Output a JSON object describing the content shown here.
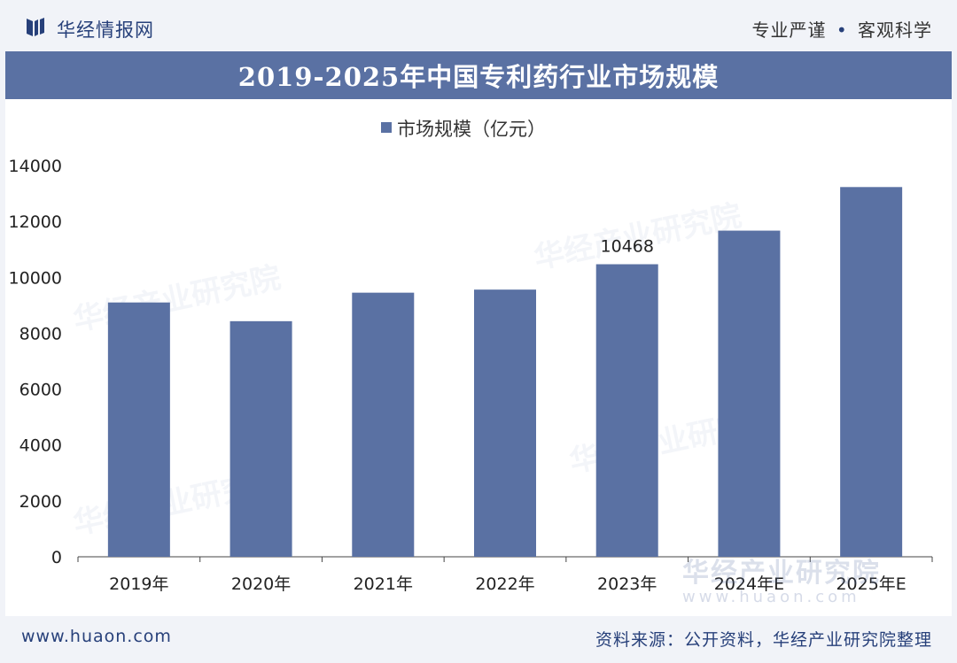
{
  "header": {
    "brand": "华经情报网",
    "slogan_left": "专业严谨",
    "slogan_dot": "•",
    "slogan_right": "客观科学"
  },
  "title": "2019-2025年中国专利药行业市场规模",
  "footer": {
    "site": "www.huaon.com",
    "source": "资料来源：公开资料，华经产业研究院整理"
  },
  "watermark": {
    "text": "华经产业研究院",
    "url": "www.huaon.com"
  },
  "colors": {
    "bar": "#5a71a3",
    "title_bg": "#5a71a3",
    "brand": "#27407a"
  },
  "chart_data": {
    "type": "bar",
    "title": "2019-2025年中国专利药行业市场规模",
    "categories": [
      "2019年",
      "2020年",
      "2021年",
      "2022年",
      "2023年",
      "2024年E",
      "2025年E"
    ],
    "series": [
      {
        "name": "市场规模（亿元）",
        "values": [
          9100,
          8430,
          9450,
          9560,
          10468,
          11670,
          13230
        ]
      }
    ],
    "data_labels": [
      {
        "category": "2023年",
        "text": "10468"
      }
    ],
    "ylim": [
      0,
      14000
    ],
    "yticks": [
      "0",
      "2000",
      "4000",
      "6000",
      "8000",
      "10000",
      "12000",
      "14000"
    ],
    "grid": false,
    "legend": "top-center"
  }
}
